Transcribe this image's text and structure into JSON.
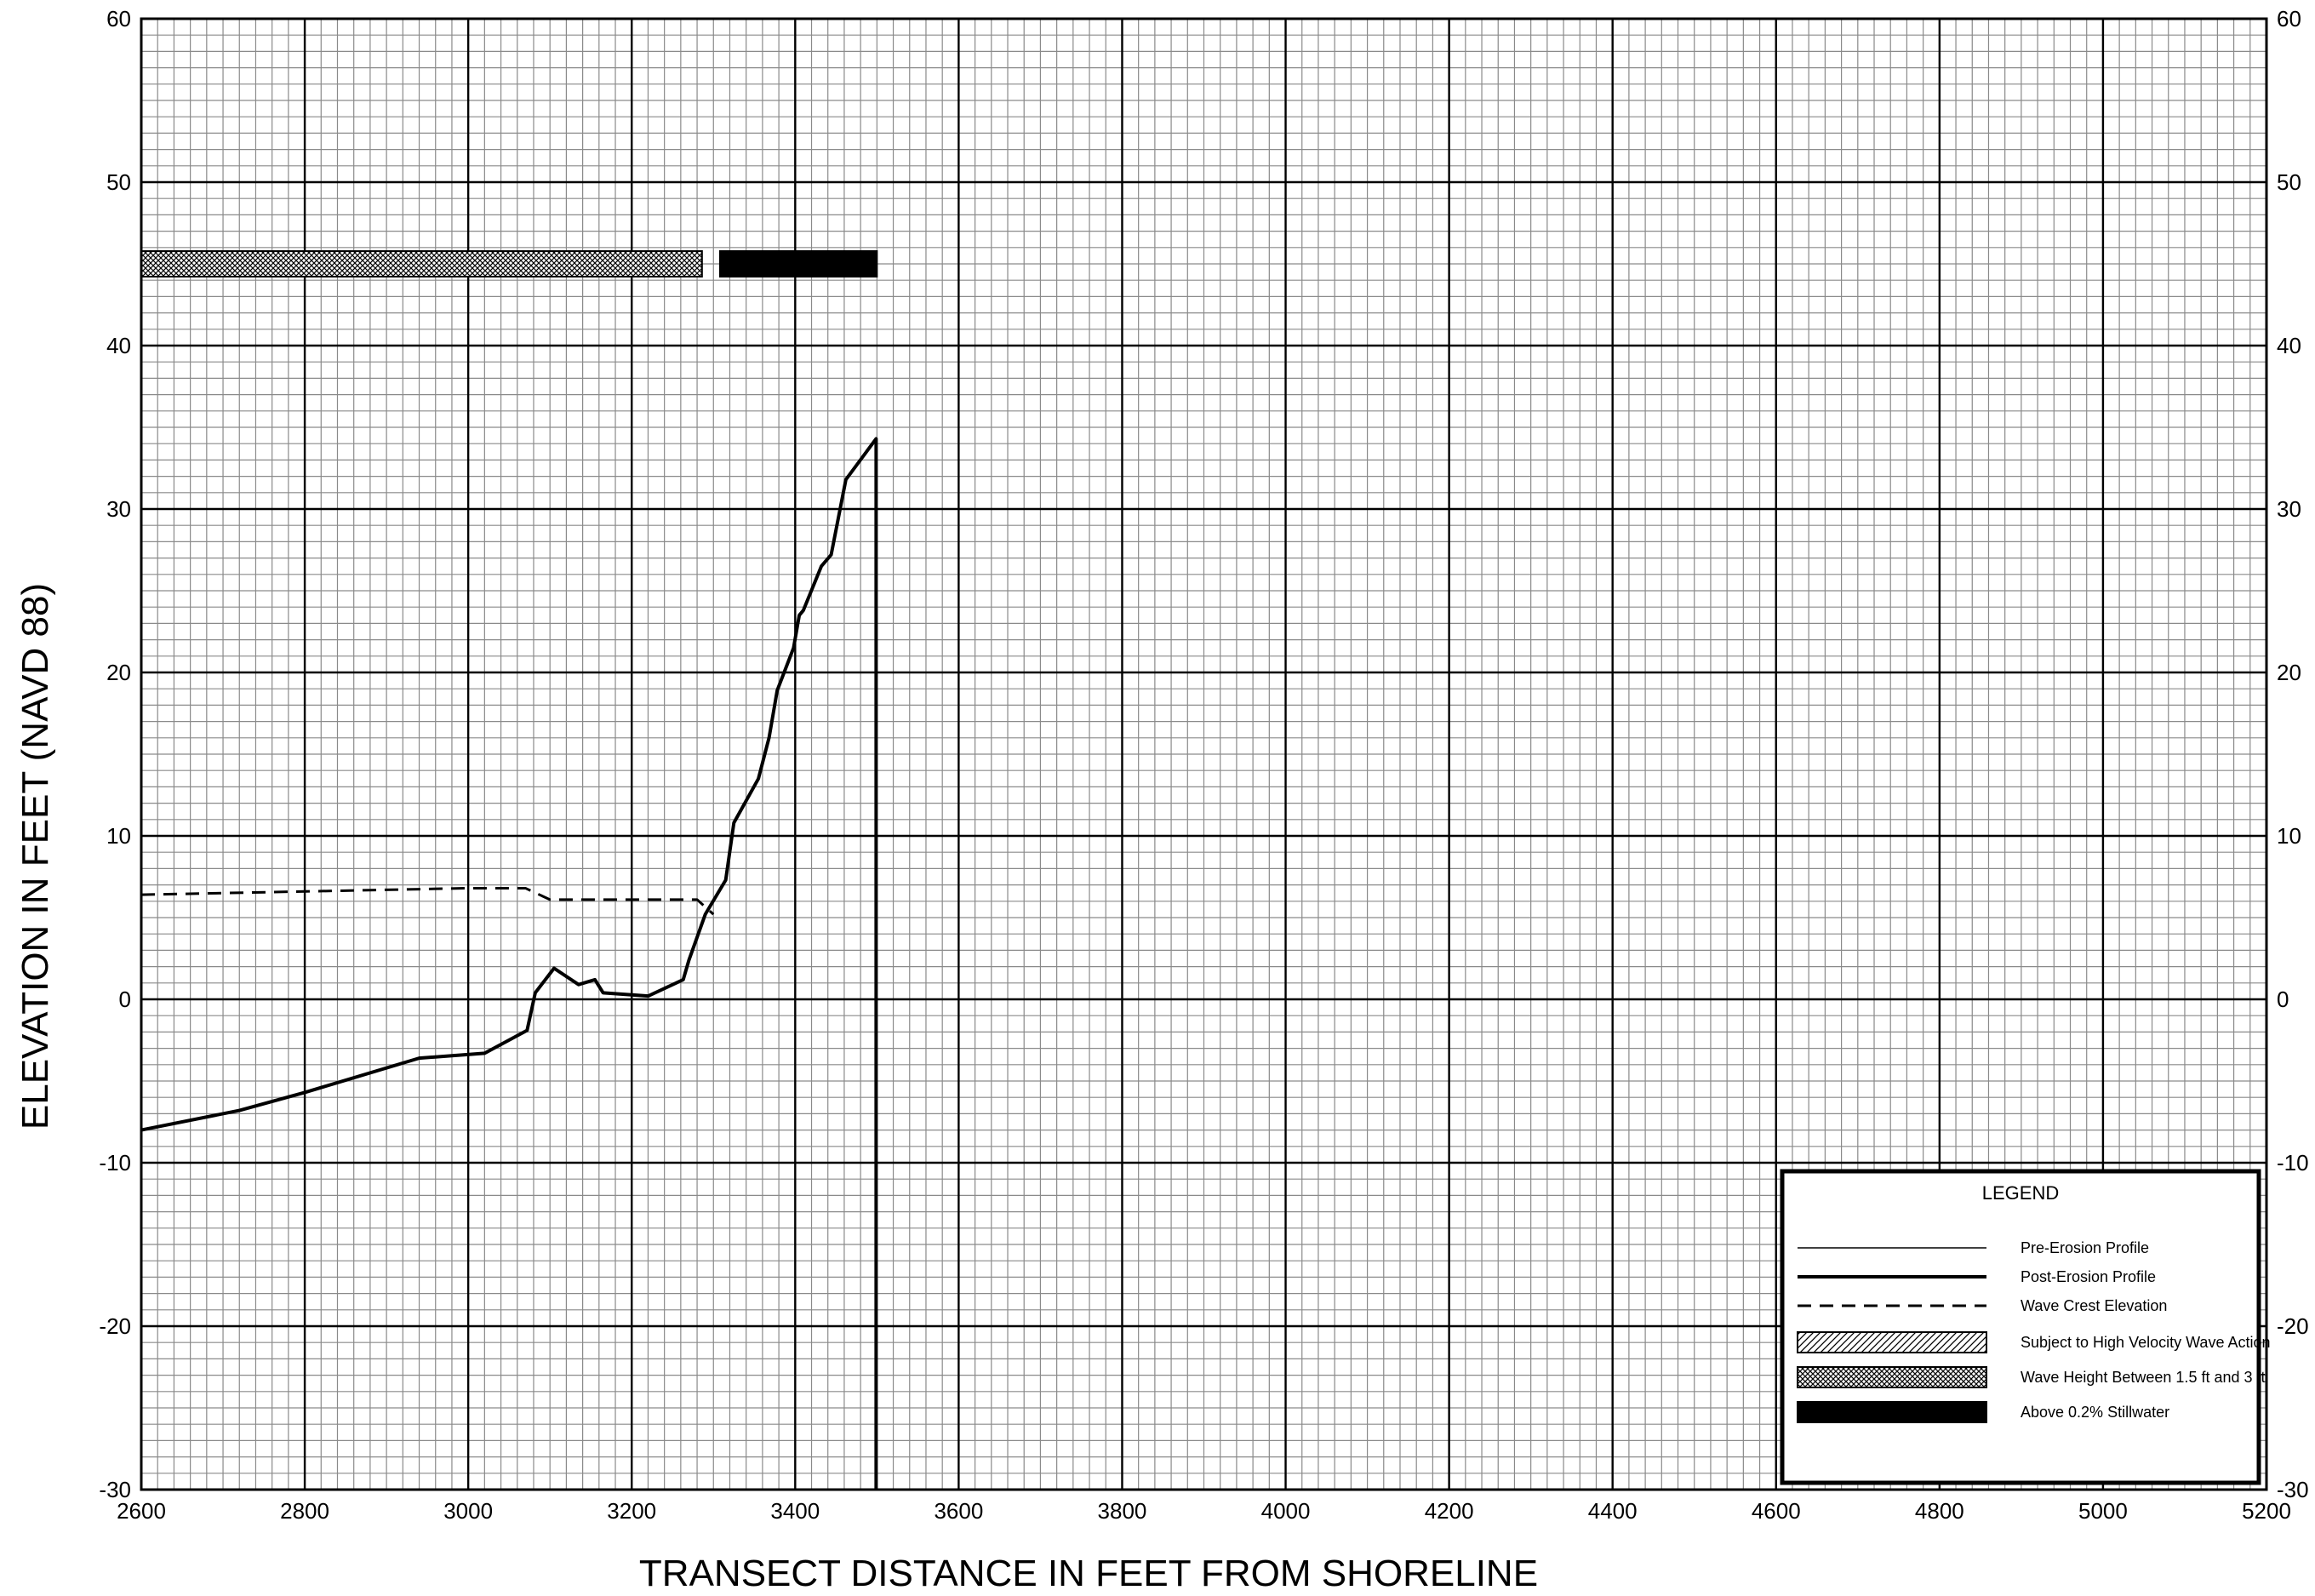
{
  "chart_data": {
    "type": "line",
    "xlabel": "TRANSECT DISTANCE IN FEET FROM SHORELINE",
    "ylabel": "ELEVATION IN FEET (NAVD 88)",
    "xlim": [
      2600,
      5200
    ],
    "ylim": [
      -30,
      60
    ],
    "x_ticks": [
      "2600",
      "2800",
      "3000",
      "3200",
      "3400",
      "3600",
      "3800",
      "4000",
      "4200",
      "4400",
      "4600",
      "4800",
      "5000",
      "5200"
    ],
    "y_ticks": [
      "-30",
      "-20",
      "-10",
      "0",
      "10",
      "20",
      "30",
      "40",
      "50",
      "60"
    ],
    "x_major_step": 200,
    "x_minor_step": 20,
    "y_major_step": 10,
    "y_minor_step": 1,
    "grid": true,
    "legend_position": "bottom-right",
    "legend": {
      "title": "LEGEND",
      "items": [
        {
          "label": "Pre-Erosion Profile",
          "style": "thin-line"
        },
        {
          "label": "Post-Erosion Profile",
          "style": "thick-line"
        },
        {
          "label": "Wave Crest Elevation",
          "style": "dashed-line"
        },
        {
          "label": "Subject to High Velocity Wave Action",
          "style": "hatched-bar"
        },
        {
          "label": "Wave Height Between 1.5 ft and 3 ft",
          "style": "crosshatch-bar"
        },
        {
          "label": "Above 0.2% Stillwater",
          "style": "solid-bar"
        }
      ]
    },
    "series": [
      {
        "name": "Post-Erosion Profile",
        "style": "thick-line",
        "points": [
          [
            2600,
            -8
          ],
          [
            2720,
            -6.8
          ],
          [
            2800,
            -5.7
          ],
          [
            2940,
            -3.6
          ],
          [
            3020,
            -3.3
          ],
          [
            3072,
            -1.9
          ],
          [
            3082,
            0.4
          ],
          [
            3105,
            1.9
          ],
          [
            3135,
            0.9
          ],
          [
            3155,
            1.2
          ],
          [
            3165,
            0.4
          ],
          [
            3220,
            0.2
          ],
          [
            3263,
            1.2
          ],
          [
            3270,
            2.4
          ],
          [
            3290,
            5.2
          ],
          [
            3315,
            7.3
          ],
          [
            3325,
            10.8
          ],
          [
            3355,
            13.5
          ],
          [
            3368,
            16
          ],
          [
            3378,
            18.9
          ],
          [
            3398,
            21.5
          ],
          [
            3405,
            23.5
          ],
          [
            3410,
            23.8
          ],
          [
            3432,
            26.5
          ],
          [
            3444,
            27.2
          ],
          [
            3462,
            31.8
          ],
          [
            3499,
            34.3
          ],
          [
            3499,
            -30
          ]
        ]
      },
      {
        "name": "Wave Crest Elevation",
        "style": "dashed-line",
        "points": [
          [
            2600,
            6.4
          ],
          [
            2800,
            6.6
          ],
          [
            3000,
            6.8
          ],
          [
            3070,
            6.8
          ],
          [
            3100,
            6.1
          ],
          [
            3280,
            6.1
          ],
          [
            3300,
            5.2
          ]
        ]
      }
    ],
    "bars": [
      {
        "name": "Wave Height Between 1.5 ft and 3 ft",
        "style": "crosshatch-bar",
        "x_start": 2600,
        "x_end": 3286,
        "y": 45
      },
      {
        "name": "Above 0.2% Stillwater",
        "style": "solid-bar",
        "x_start": 3308,
        "x_end": 3500,
        "y": 45
      }
    ]
  }
}
